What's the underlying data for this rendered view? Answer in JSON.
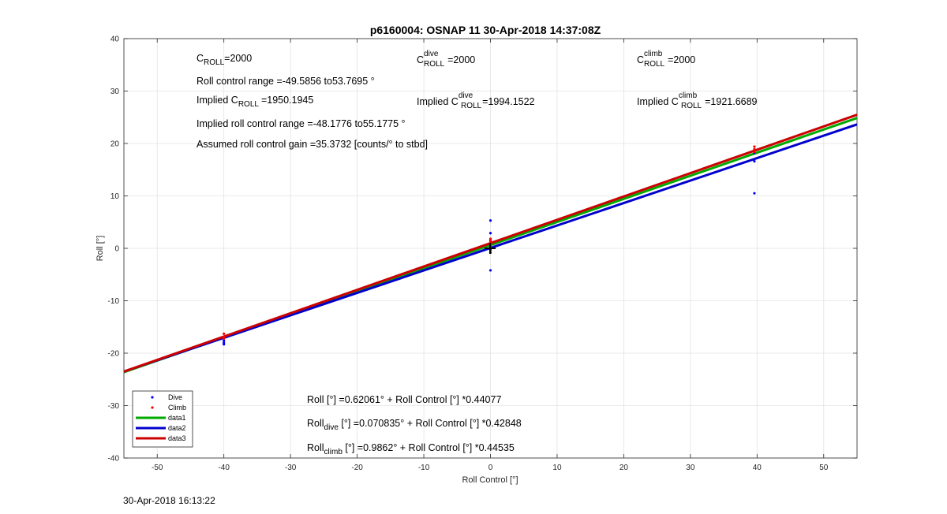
{
  "chart_data": {
    "type": "scatter",
    "title": "p6160004: OSNAP 11 30-Apr-2018 14:37:08Z",
    "xlabel": "Roll Control [°]",
    "ylabel": "Roll [°]",
    "xlim": [
      -55,
      55
    ],
    "ylim": [
      -40,
      40
    ],
    "xticks": [
      -50,
      -40,
      -30,
      -20,
      -10,
      0,
      10,
      20,
      30,
      40,
      50
    ],
    "yticks": [
      -40,
      -30,
      -20,
      -10,
      0,
      10,
      20,
      30,
      40
    ],
    "grid": true,
    "legend_position": "bottom-left",
    "series": [
      {
        "name": "Dive",
        "kind": "points",
        "color": "#0000ff",
        "x": [
          -40,
          -40,
          -40,
          0,
          0,
          0,
          0,
          0,
          0,
          0,
          0,
          39.6,
          39.6,
          39.6
        ],
        "y": [
          -18.3,
          -18.0,
          -17.6,
          5.3,
          2.9,
          1.5,
          0.8,
          0.3,
          -0.3,
          -0.8,
          -4.2,
          18.2,
          16.6,
          10.5
        ]
      },
      {
        "name": "Climb",
        "kind": "points",
        "color": "#ff0000",
        "x": [
          -40,
          -40,
          -40,
          0,
          0,
          0,
          0,
          0,
          0,
          39.6,
          39.6,
          39.6
        ],
        "y": [
          -16.3,
          -16.9,
          -17.2,
          1.8,
          1.4,
          1.0,
          0.7,
          0.4,
          0.1,
          19.4,
          18.9,
          18.4
        ]
      },
      {
        "name": "data1",
        "kind": "line",
        "color": "#00aa00",
        "x": [
          -55,
          55
        ],
        "y": [
          -23.6209,
          24.8618
        ]
      },
      {
        "name": "data2",
        "kind": "line",
        "color": "#0000cc",
        "x": [
          -55,
          55
        ],
        "y": [
          -23.4956,
          23.6372
        ]
      },
      {
        "name": "data3",
        "kind": "line",
        "color": "#cc0000",
        "x": [
          -55,
          55
        ],
        "y": [
          -23.5081,
          25.4804
        ]
      }
    ],
    "annotations": {
      "c_roll": {
        "base": "C",
        "sub": "ROLL",
        "sup": "",
        "value": "=2000"
      },
      "c_dive": {
        "base": "C",
        "sub": "ROLL",
        "sup": "dive",
        "value": "=2000"
      },
      "c_climb": {
        "base": "C",
        "sub": "ROLL",
        "sup": "climb",
        "value": "=2000"
      },
      "roll_range": "Roll control range =-49.5856 to53.7695 °",
      "implied_c_roll": {
        "pre": "Implied ",
        "base": "C",
        "sub": "ROLL",
        "sup": "",
        "value": "=1950.1945"
      },
      "implied_c_dive": {
        "pre": "Implied ",
        "base": "C",
        "sub": "ROLL",
        "sup": "dive",
        "value": "=1994.1522"
      },
      "implied_c_climb": {
        "pre": "Implied ",
        "base": "C",
        "sub": "ROLL",
        "sup": "climb",
        "value": "=1921.6689"
      },
      "implied_range": "Implied roll control range =-48.1776 to55.1775 °",
      "gain": "Assumed roll control gain =35.3732 [counts/° to stbd]",
      "eq_all": {
        "base": "Roll",
        "sub": "",
        "rest": " [°] =0.62061° + Roll Control [°] *0.44077"
      },
      "eq_dive": {
        "base": "Roll",
        "sub": "dive",
        "rest": " [°] =0.070835° + Roll Control [°] *0.42848"
      },
      "eq_climb": {
        "base": "Roll",
        "sub": "climb",
        "rest": " [°] =0.9862° + Roll Control [°] *0.44535"
      }
    }
  },
  "timestamp": "30-Apr-2018 16:13:22"
}
